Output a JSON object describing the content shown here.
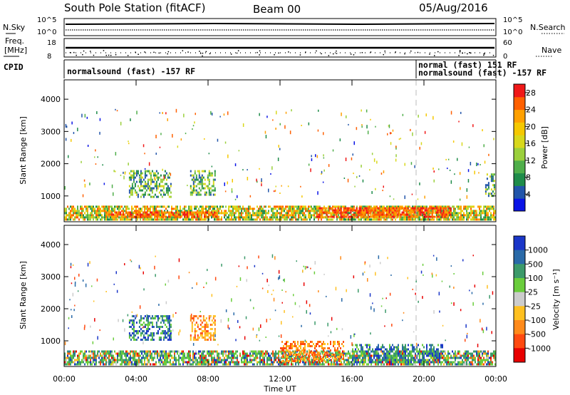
{
  "header": {
    "station": "South Pole Station (fitACF)",
    "beam": "Beam 00",
    "date": "05/Aug/2016"
  },
  "status_strips": {
    "nsky_label": "N.Sky",
    "nsearch_label": "N.Search",
    "nsky_ticks": [
      "10^5",
      "10^0"
    ],
    "freq_label_1": "Freq.",
    "freq_label_2": "[MHz]",
    "freq_ticks": [
      "18",
      "8"
    ],
    "nave_label": "Nave",
    "nave_ticks": [
      "60",
      "0"
    ],
    "cpid_label": "CPID",
    "cpid_segments": [
      {
        "start_hour": 0.0,
        "text": "normalsound (fast) -157 RF"
      },
      {
        "start_hour": 19.6,
        "text": "normal (fast) 151 RF"
      },
      {
        "start_hour": 19.6,
        "text": "normalsound (fast) -157 RF"
      }
    ]
  },
  "chart_data": [
    {
      "type": "heatmap",
      "panel": "power",
      "ylabel": "Slant Range [km]",
      "xlabel": "Time UT",
      "xlim_hours": [
        0,
        24
      ],
      "ylim": [
        200,
        4600
      ],
      "yticks": [
        "1000",
        "2000",
        "3000",
        "4000"
      ],
      "colorbar": {
        "label": "Power [dB]",
        "ticks": [
          "4",
          "8",
          "12",
          "16",
          "20",
          "24",
          "28"
        ],
        "range": [
          0,
          30
        ],
        "colors": [
          "#0a14e6",
          "#2255aa",
          "#1f8c4a",
          "#4fae4a",
          "#9bd03c",
          "#d8d81c",
          "#f5c800",
          "#ffa000",
          "#ff6000",
          "#f01818"
        ]
      },
      "echo_regions": [
        {
          "t0": 0.0,
          "t1": 24.0,
          "r0": 280,
          "r1": 700,
          "level": "moderate-high"
        },
        {
          "t0": 2.3,
          "t1": 8.6,
          "r0": 350,
          "r1": 520,
          "level": "high"
        },
        {
          "t0": 14.0,
          "t1": 21.5,
          "r0": 350,
          "r1": 650,
          "level": "high"
        },
        {
          "t0": 3.6,
          "t1": 5.9,
          "r0": 1000,
          "r1": 1800,
          "level": "moderate"
        },
        {
          "t0": 7.0,
          "t1": 8.4,
          "r0": 1050,
          "r1": 1800,
          "level": "moderate"
        },
        {
          "t0": 23.4,
          "t1": 23.9,
          "r0": 1000,
          "r1": 1700,
          "level": "moderate"
        }
      ]
    },
    {
      "type": "heatmap",
      "panel": "velocity",
      "ylabel": "Slant Range [km]",
      "xlabel": "Time UT",
      "xlim_hours": [
        0,
        24
      ],
      "ylim": [
        200,
        4600
      ],
      "yticks": [
        "1000",
        "2000",
        "3000",
        "4000"
      ],
      "colorbar": {
        "label": "Velocity [m s⁻¹]",
        "ticks": [
          "1000",
          "500",
          "100",
          "25",
          "-25",
          "-100",
          "-500",
          "-1000"
        ],
        "colors": [
          "#1a36c8",
          "#2a6aa8",
          "#3c9a6a",
          "#6acd3c",
          "#cccccc",
          "#ffc020",
          "#ff8a1a",
          "#ff4a10",
          "#e80000"
        ]
      },
      "echo_regions": [
        {
          "t0": 0.0,
          "t1": 24.0,
          "r0": 280,
          "r1": 700,
          "level": "mixed"
        },
        {
          "t0": 3.6,
          "t1": 5.9,
          "r0": 1000,
          "r1": 1800,
          "level": "positive"
        },
        {
          "t0": 7.0,
          "t1": 8.4,
          "r0": 1050,
          "r1": 1800,
          "level": "negative"
        },
        {
          "t0": 12.0,
          "t1": 15.5,
          "r0": 350,
          "r1": 1000,
          "level": "negative"
        },
        {
          "t0": 16.0,
          "t1": 21.0,
          "r0": 350,
          "r1": 900,
          "level": "positive"
        }
      ]
    }
  ],
  "time_axis": {
    "ticks": [
      "00:00",
      "04:00",
      "08:00",
      "12:00",
      "16:00",
      "20:00",
      "00:00"
    ],
    "label": "Time UT"
  }
}
